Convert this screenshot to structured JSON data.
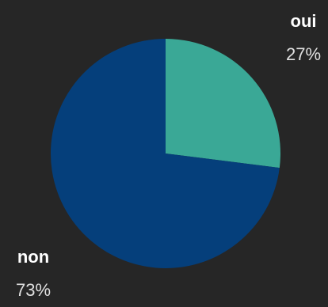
{
  "chart_data": {
    "type": "pie",
    "categories": [
      "oui",
      "non"
    ],
    "values": [
      27,
      73
    ],
    "value_labels": [
      "27%",
      "73%"
    ],
    "colors": [
      "#3aa896",
      "#053f7b"
    ]
  }
}
